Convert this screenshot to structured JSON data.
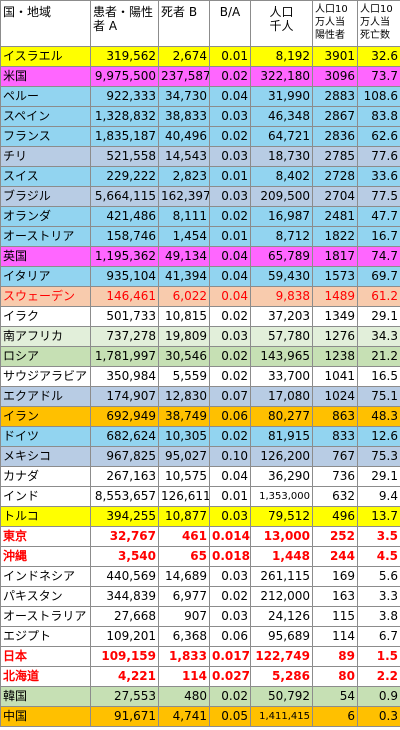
{
  "colors": {
    "yellow": "#ffff00",
    "magenta": "#ff66ff",
    "lightblue": "#92d4f0",
    "steelblue": "#b8cce4",
    "white": "#ffffff",
    "lightgreen": "#e2efda",
    "green": "#c6e0b4",
    "salmon": "#f8cbad",
    "orange": "#ffc000",
    "boldred": "#ff0000"
  },
  "header": {
    "country": "国・地域",
    "patients": [
      "患者・陽性",
      "者 A"
    ],
    "deaths": "死者 B",
    "ratio": "B/A",
    "population": [
      "人口",
      "千人"
    ],
    "per100k_positive": [
      "人口10",
      "万人当",
      "陽性者"
    ],
    "per100k_deaths": [
      "人口10",
      "万人当",
      "死亡数"
    ]
  },
  "rows": [
    {
      "name": "イスラエル",
      "patients": "319,562",
      "deaths": "2,674",
      "ratio": "0.01",
      "population": "8,192",
      "pos100k": "3901",
      "death100k": "32.6",
      "bg": "yellow"
    },
    {
      "name": "米国",
      "patients": "9,975,500",
      "deaths": "237,587",
      "ratio": "0.02",
      "population": "322,180",
      "pos100k": "3096",
      "death100k": "73.7",
      "bg": "magenta"
    },
    {
      "name": "ペルー",
      "patients": "922,333",
      "deaths": "34,730",
      "ratio": "0.04",
      "population": "31,990",
      "pos100k": "2883",
      "death100k": "108.6",
      "bg": "lightblue"
    },
    {
      "name": "スペイン",
      "patients": "1,328,832",
      "deaths": "38,833",
      "ratio": "0.03",
      "population": "46,348",
      "pos100k": "2867",
      "death100k": "83.8",
      "bg": "lightblue"
    },
    {
      "name": "フランス",
      "patients": "1,835,187",
      "deaths": "40,496",
      "ratio": "0.02",
      "population": "64,721",
      "pos100k": "2836",
      "death100k": "62.6",
      "bg": "lightblue"
    },
    {
      "name": "チリ",
      "patients": "521,558",
      "deaths": "14,543",
      "ratio": "0.03",
      "population": "18,730",
      "pos100k": "2785",
      "death100k": "77.6",
      "bg": "steelblue"
    },
    {
      "name": "スイス",
      "patients": "229,222",
      "deaths": "2,823",
      "ratio": "0.01",
      "population": "8,402",
      "pos100k": "2728",
      "death100k": "33.6",
      "bg": "lightblue"
    },
    {
      "name": "ブラジル",
      "patients": "5,664,115",
      "deaths": "162,397",
      "ratio": "0.03",
      "population": "209,500",
      "pos100k": "2704",
      "death100k": "77.5",
      "bg": "steelblue"
    },
    {
      "name": "オランダ",
      "patients": "421,486",
      "deaths": "8,111",
      "ratio": "0.02",
      "population": "16,987",
      "pos100k": "2481",
      "death100k": "47.7",
      "bg": "lightblue"
    },
    {
      "name": "オーストリア",
      "patients": "158,746",
      "deaths": "1,454",
      "ratio": "0.01",
      "population": "8,712",
      "pos100k": "1822",
      "death100k": "16.7",
      "bg": "lightblue"
    },
    {
      "name": "英国",
      "patients": "1,195,362",
      "deaths": "49,134",
      "ratio": "0.04",
      "population": "65,789",
      "pos100k": "1817",
      "death100k": "74.7",
      "bg": "magenta"
    },
    {
      "name": "イタリア",
      "patients": "935,104",
      "deaths": "41,394",
      "ratio": "0.04",
      "population": "59,430",
      "pos100k": "1573",
      "death100k": "69.7",
      "bg": "lightblue"
    },
    {
      "name": "スウェーデン",
      "patients": "146,461",
      "deaths": "6,022",
      "ratio": "0.04",
      "population": "9,838",
      "pos100k": "1489",
      "death100k": "61.2",
      "bg": "salmon",
      "red": true
    },
    {
      "name": "イラク",
      "patients": "501,733",
      "deaths": "10,815",
      "ratio": "0.02",
      "population": "37,203",
      "pos100k": "1349",
      "death100k": "29.1",
      "bg": "white"
    },
    {
      "name": "南アフリカ",
      "patients": "737,278",
      "deaths": "19,809",
      "ratio": "0.03",
      "population": "57,780",
      "pos100k": "1276",
      "death100k": "34.3",
      "bg": "lightgreen"
    },
    {
      "name": "ロシア",
      "patients": "1,781,997",
      "deaths": "30,546",
      "ratio": "0.02",
      "population": "143,965",
      "pos100k": "1238",
      "death100k": "21.2",
      "bg": "green"
    },
    {
      "name": "サウジアラビア",
      "patients": "350,984",
      "deaths": "5,559",
      "ratio": "0.02",
      "population": "33,700",
      "pos100k": "1041",
      "death100k": "16.5",
      "bg": "white"
    },
    {
      "name": "エクアドル",
      "patients": "174,907",
      "deaths": "12,830",
      "ratio": "0.07",
      "population": "17,080",
      "pos100k": "1024",
      "death100k": "75.1",
      "bg": "steelblue"
    },
    {
      "name": "イラン",
      "patients": "692,949",
      "deaths": "38,749",
      "ratio": "0.06",
      "population": "80,277",
      "pos100k": "863",
      "death100k": "48.3",
      "bg": "orange"
    },
    {
      "name": "ドイツ",
      "patients": "682,624",
      "deaths": "10,305",
      "ratio": "0.02",
      "population": "81,915",
      "pos100k": "833",
      "death100k": "12.6",
      "bg": "lightblue"
    },
    {
      "name": "メキシコ",
      "patients": "967,825",
      "deaths": "95,027",
      "ratio": "0.10",
      "population": "126,200",
      "pos100k": "767",
      "death100k": "75.3",
      "bg": "steelblue"
    },
    {
      "name": "カナダ",
      "patients": "267,163",
      "deaths": "10,575",
      "ratio": "0.04",
      "population": "36,290",
      "pos100k": "736",
      "death100k": "29.1",
      "bg": "white"
    },
    {
      "name": "インド",
      "patients": "8,553,657",
      "deaths": "126,611",
      "ratio": "0.01",
      "population": "1,353,000",
      "pos100k": "632",
      "death100k": "9.4",
      "bg": "white",
      "popSmall": true
    },
    {
      "name": "トルコ",
      "patients": "394,255",
      "deaths": "10,877",
      "ratio": "0.03",
      "population": "79,512",
      "pos100k": "496",
      "death100k": "13.7",
      "bg": "yellow"
    },
    {
      "name": "東京",
      "patients": "32,767",
      "deaths": "461",
      "ratio": "0.014",
      "population": "13,000",
      "pos100k": "252",
      "death100k": "3.5",
      "bg": "white",
      "bold": true
    },
    {
      "name": "沖縄",
      "patients": "3,540",
      "deaths": "65",
      "ratio": "0.018",
      "population": "1,448",
      "pos100k": "244",
      "death100k": "4.5",
      "bg": "white",
      "bold": true
    },
    {
      "name": "インドネシア",
      "patients": "440,569",
      "deaths": "14,689",
      "ratio": "0.03",
      "population": "261,115",
      "pos100k": "169",
      "death100k": "5.6",
      "bg": "white"
    },
    {
      "name": "パキスタン",
      "patients": "344,839",
      "deaths": "6,977",
      "ratio": "0.02",
      "population": "212,000",
      "pos100k": "163",
      "death100k": "3.3",
      "bg": "white"
    },
    {
      "name": "オーストラリア",
      "patients": "27,668",
      "deaths": "907",
      "ratio": "0.03",
      "population": "24,126",
      "pos100k": "115",
      "death100k": "3.8",
      "bg": "white"
    },
    {
      "name": "エジプト",
      "patients": "109,201",
      "deaths": "6,368",
      "ratio": "0.06",
      "population": "95,689",
      "pos100k": "114",
      "death100k": "6.7",
      "bg": "white"
    },
    {
      "name": "日本",
      "patients": "109,159",
      "deaths": "1,833",
      "ratio": "0.017",
      "population": "122,749",
      "pos100k": "89",
      "death100k": "1.5",
      "bg": "white",
      "bold": true
    },
    {
      "name": "北海道",
      "patients": "4,221",
      "deaths": "114",
      "ratio": "0.027",
      "population": "5,286",
      "pos100k": "80",
      "death100k": "2.2",
      "bg": "white",
      "bold": true
    },
    {
      "name": "韓国",
      "patients": "27,553",
      "deaths": "480",
      "ratio": "0.02",
      "population": "50,792",
      "pos100k": "54",
      "death100k": "0.9",
      "bg": "green"
    },
    {
      "name": "中国",
      "patients": "91,671",
      "deaths": "4,741",
      "ratio": "0.05",
      "population": "1,411,415",
      "pos100k": "6",
      "death100k": "0.3",
      "bg": "orange",
      "popSmall": true
    }
  ]
}
